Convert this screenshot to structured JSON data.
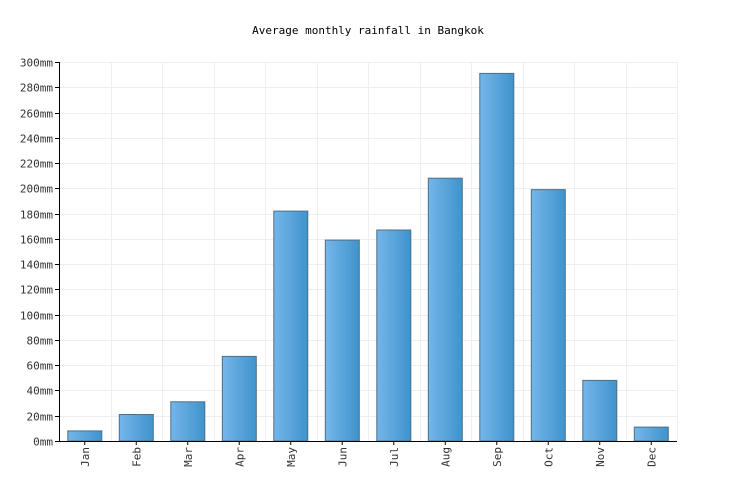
{
  "chart_data": {
    "type": "bar",
    "title": "Average monthly rainfall in Bangkok",
    "categories": [
      "Jan",
      "Feb",
      "Mar",
      "Apr",
      "May",
      "Jun",
      "Jul",
      "Aug",
      "Sep",
      "Oct",
      "Nov",
      "Dec"
    ],
    "values": [
      8,
      21,
      31,
      67,
      182,
      159,
      167,
      208,
      291,
      199,
      48,
      11
    ],
    "unit": "mm",
    "ylim": [
      0,
      300
    ],
    "ytick_step": 20,
    "xlabel": "",
    "ylabel": "",
    "grid": true,
    "colors": {
      "bar_light": "#74b6ea",
      "bar_dark": "#3f93cc",
      "bar_edge": "#4f6f86",
      "grid": "#eeeeee",
      "axis": "#000000"
    }
  }
}
